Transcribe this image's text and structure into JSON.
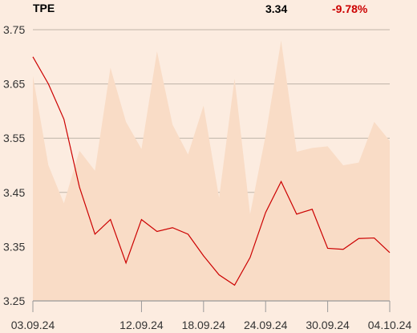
{
  "header": {
    "symbol": "TPE",
    "last_value": "3.34",
    "change": "-9.78%"
  },
  "colors": {
    "background": "#fcece0",
    "area_fill": "#f9dcc6",
    "line": "#cc0000",
    "change_negative": "#cc0000",
    "grid": "#bfb3a8",
    "axis": "#999999",
    "text": "#333333"
  },
  "chart_data": {
    "type": "line",
    "title": "",
    "xlabel": "",
    "ylabel": "",
    "ylim": [
      3.25,
      3.75
    ],
    "y_ticks": [
      3.75,
      3.65,
      3.55,
      3.45,
      3.35,
      3.25
    ],
    "y_tick_labels": [
      "3.75",
      "3.65",
      "3.55",
      "3.45",
      "3.35",
      "3.25"
    ],
    "x_tick_labels": [
      {
        "label": "03.09.24",
        "index": 0
      },
      {
        "label": "12.09.24",
        "index": 7
      },
      {
        "label": "18.09.24",
        "index": 11
      },
      {
        "label": "24.09.24",
        "index": 15
      },
      {
        "label": "30.09.24",
        "index": 19
      },
      {
        "label": "04.10.24",
        "index": 23
      }
    ],
    "grid": true,
    "series": [
      {
        "kind": "line",
        "values": [
          3.7,
          3.65,
          3.585,
          3.46,
          3.373,
          3.4,
          3.32,
          3.4,
          3.378,
          3.385,
          3.373,
          3.333,
          3.298,
          3.279,
          3.33,
          3.413,
          3.47,
          3.41,
          3.419,
          3.347,
          3.345,
          3.365,
          3.366,
          3.339
        ]
      },
      {
        "kind": "area",
        "values": [
          3.665,
          3.5,
          3.43,
          3.527,
          3.49,
          3.68,
          3.58,
          3.53,
          3.71,
          3.575,
          3.52,
          3.61,
          3.44,
          3.66,
          3.41,
          3.555,
          3.73,
          3.525,
          3.532,
          3.535,
          3.5,
          3.505,
          3.58,
          3.545
        ]
      }
    ]
  }
}
